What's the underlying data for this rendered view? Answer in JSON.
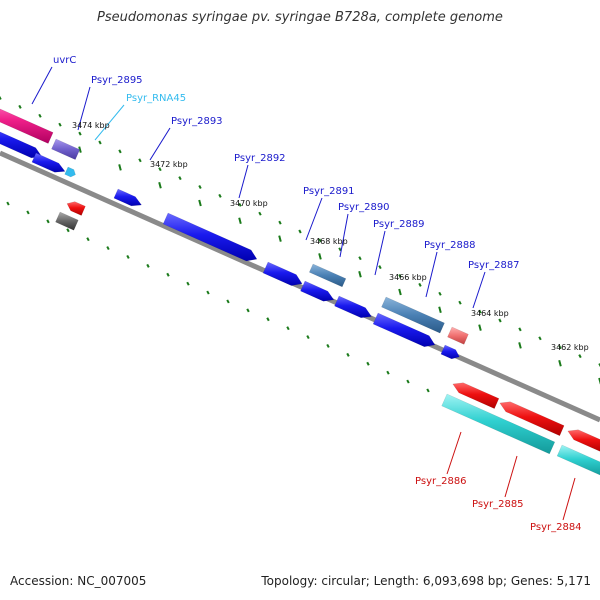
{
  "title": "Pseudomonas syringae pv. syringae B728a, complete genome",
  "footer": {
    "accession": "Accession: NC_007005",
    "topology": "Topology: circular; Length: 6,093,698 bp; Genes: 5,171"
  },
  "colors": {
    "forward_gene": "#1515e6",
    "reverse_gene": "#e00000",
    "rna": "#22cccc",
    "backbone": "#8a8a8a",
    "forward_label": "#1a1acc",
    "reverse_label": "#cc1111",
    "rna_label": "#33bbee",
    "tick": "#1a7a1a"
  },
  "scale_labels": [
    "3474 kbp",
    "3472 kbp",
    "3470 kbp",
    "3468 kbp",
    "3466 kbp",
    "3464 kbp",
    "3462 kbp"
  ],
  "gene_labels": [
    {
      "text": "uvrC",
      "color": "forward"
    },
    {
      "text": "Psyr_2895",
      "color": "forward"
    },
    {
      "text": "Psyr_RNA45",
      "color": "rna"
    },
    {
      "text": "Psyr_2893",
      "color": "forward"
    },
    {
      "text": "Psyr_2892",
      "color": "forward"
    },
    {
      "text": "Psyr_2891",
      "color": "forward"
    },
    {
      "text": "Psyr_2890",
      "color": "forward"
    },
    {
      "text": "Psyr_2889",
      "color": "forward"
    },
    {
      "text": "Psyr_2888",
      "color": "forward"
    },
    {
      "text": "Psyr_2887",
      "color": "forward"
    },
    {
      "text": "Psyr_2886",
      "color": "reverse"
    },
    {
      "text": "Psyr_2885",
      "color": "reverse"
    },
    {
      "text": "Psyr_2884",
      "color": "reverse"
    }
  ]
}
